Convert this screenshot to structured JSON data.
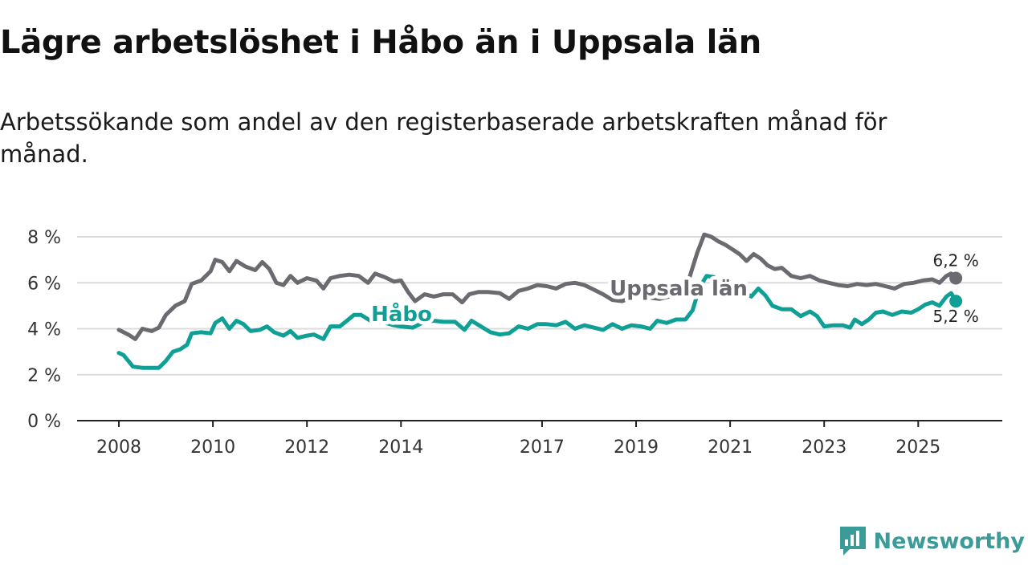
{
  "title": "Lägre arbetslöshet i Håbo än i Uppsala län",
  "subtitle": "Arbetssökande som andel av den registerbaserade arbetskraften månad för månad.",
  "brand": {
    "name": "Newsworthy"
  },
  "chart_data": {
    "type": "line",
    "title": "Lägre arbetslöshet i Håbo än i Uppsala län",
    "xlabel": "",
    "ylabel": "",
    "x_ticks": [
      2008,
      2010,
      2012,
      2014,
      2017,
      2019,
      2021,
      2023,
      2025
    ],
    "x_range": [
      2008,
      2025.9
    ],
    "ylim": [
      0,
      8
    ],
    "y_ticks": [
      0,
      2,
      4,
      6,
      8
    ],
    "y_tick_labels": [
      "0 %",
      "2 %",
      "4 %",
      "6 %",
      "8 %"
    ],
    "grid": true,
    "series": [
      {
        "name": "Uppsala län",
        "color": "#6b6a70",
        "end_label": "6,2 %",
        "points": [
          [
            2008.0,
            3.95
          ],
          [
            2008.2,
            3.75
          ],
          [
            2008.35,
            3.55
          ],
          [
            2008.5,
            4.0
          ],
          [
            2008.7,
            3.9
          ],
          [
            2008.85,
            4.05
          ],
          [
            2009.0,
            4.6
          ],
          [
            2009.2,
            5.0
          ],
          [
            2009.4,
            5.2
          ],
          [
            2009.55,
            5.95
          ],
          [
            2009.75,
            6.1
          ],
          [
            2009.95,
            6.5
          ],
          [
            2010.05,
            7.0
          ],
          [
            2010.2,
            6.9
          ],
          [
            2010.35,
            6.5
          ],
          [
            2010.5,
            6.95
          ],
          [
            2010.7,
            6.7
          ],
          [
            2010.9,
            6.55
          ],
          [
            2011.05,
            6.9
          ],
          [
            2011.2,
            6.6
          ],
          [
            2011.35,
            6.0
          ],
          [
            2011.5,
            5.9
          ],
          [
            2011.65,
            6.3
          ],
          [
            2011.8,
            6.0
          ],
          [
            2012.0,
            6.2
          ],
          [
            2012.2,
            6.1
          ],
          [
            2012.35,
            5.75
          ],
          [
            2012.5,
            6.2
          ],
          [
            2012.7,
            6.3
          ],
          [
            2012.9,
            6.35
          ],
          [
            2013.1,
            6.3
          ],
          [
            2013.3,
            6.0
          ],
          [
            2013.45,
            6.4
          ],
          [
            2013.65,
            6.25
          ],
          [
            2013.85,
            6.05
          ],
          [
            2014.0,
            6.1
          ],
          [
            2014.15,
            5.6
          ],
          [
            2014.3,
            5.2
          ],
          [
            2014.5,
            5.5
          ],
          [
            2014.7,
            5.4
          ],
          [
            2014.9,
            5.5
          ],
          [
            2015.1,
            5.5
          ],
          [
            2015.3,
            5.15
          ],
          [
            2015.45,
            5.5
          ],
          [
            2015.65,
            5.6
          ],
          [
            2015.85,
            5.6
          ],
          [
            2016.1,
            5.55
          ],
          [
            2016.3,
            5.3
          ],
          [
            2016.5,
            5.65
          ],
          [
            2016.7,
            5.75
          ],
          [
            2016.9,
            5.9
          ],
          [
            2017.1,
            5.85
          ],
          [
            2017.3,
            5.75
          ],
          [
            2017.5,
            5.95
          ],
          [
            2017.7,
            6.0
          ],
          [
            2017.9,
            5.9
          ],
          [
            2018.1,
            5.7
          ],
          [
            2018.3,
            5.5
          ],
          [
            2018.5,
            5.25
          ],
          [
            2018.7,
            5.2
          ],
          [
            2018.9,
            5.35
          ],
          [
            2019.1,
            5.5
          ],
          [
            2019.3,
            5.35
          ],
          [
            2019.5,
            5.3
          ],
          [
            2019.7,
            5.4
          ],
          [
            2019.9,
            5.5
          ],
          [
            2020.1,
            6.0
          ],
          [
            2020.3,
            7.3
          ],
          [
            2020.45,
            8.1
          ],
          [
            2020.6,
            8.0
          ],
          [
            2020.75,
            7.8
          ],
          [
            2020.9,
            7.65
          ],
          [
            2021.05,
            7.45
          ],
          [
            2021.2,
            7.25
          ],
          [
            2021.35,
            6.95
          ],
          [
            2021.5,
            7.25
          ],
          [
            2021.65,
            7.05
          ],
          [
            2021.8,
            6.75
          ],
          [
            2021.95,
            6.6
          ],
          [
            2022.1,
            6.65
          ],
          [
            2022.3,
            6.3
          ],
          [
            2022.5,
            6.2
          ],
          [
            2022.7,
            6.3
          ],
          [
            2022.9,
            6.1
          ],
          [
            2023.1,
            6.0
          ],
          [
            2023.3,
            5.9
          ],
          [
            2023.5,
            5.85
          ],
          [
            2023.7,
            5.95
          ],
          [
            2023.9,
            5.9
          ],
          [
            2024.1,
            5.95
          ],
          [
            2024.3,
            5.85
          ],
          [
            2024.5,
            5.75
          ],
          [
            2024.7,
            5.95
          ],
          [
            2024.9,
            6.0
          ],
          [
            2025.1,
            6.1
          ],
          [
            2025.3,
            6.15
          ],
          [
            2025.45,
            6.0
          ],
          [
            2025.6,
            6.3
          ],
          [
            2025.7,
            6.4
          ],
          [
            2025.8,
            6.2
          ]
        ]
      },
      {
        "name": "Håbo",
        "color": "#0f9f95",
        "end_label": "5,2 %",
        "points": [
          [
            2008.0,
            2.95
          ],
          [
            2008.1,
            2.85
          ],
          [
            2008.3,
            2.35
          ],
          [
            2008.5,
            2.3
          ],
          [
            2008.7,
            2.3
          ],
          [
            2008.85,
            2.3
          ],
          [
            2009.0,
            2.6
          ],
          [
            2009.15,
            3.0
          ],
          [
            2009.3,
            3.1
          ],
          [
            2009.45,
            3.3
          ],
          [
            2009.55,
            3.8
          ],
          [
            2009.75,
            3.85
          ],
          [
            2009.95,
            3.8
          ],
          [
            2010.05,
            4.25
          ],
          [
            2010.2,
            4.45
          ],
          [
            2010.35,
            4.0
          ],
          [
            2010.5,
            4.35
          ],
          [
            2010.65,
            4.2
          ],
          [
            2010.8,
            3.9
          ],
          [
            2011.0,
            3.95
          ],
          [
            2011.15,
            4.1
          ],
          [
            2011.3,
            3.85
          ],
          [
            2011.5,
            3.7
          ],
          [
            2011.65,
            3.9
          ],
          [
            2011.8,
            3.6
          ],
          [
            2012.0,
            3.7
          ],
          [
            2012.15,
            3.75
          ],
          [
            2012.35,
            3.55
          ],
          [
            2012.5,
            4.1
          ],
          [
            2012.7,
            4.1
          ],
          [
            2012.85,
            4.35
          ],
          [
            2013.0,
            4.6
          ],
          [
            2013.15,
            4.6
          ],
          [
            2013.35,
            4.35
          ],
          [
            2013.6,
            4.3
          ],
          [
            2013.85,
            4.15
          ],
          [
            2014.0,
            4.1
          ],
          [
            2014.25,
            4.05
          ],
          [
            2014.5,
            4.3
          ],
          [
            2014.7,
            4.35
          ],
          [
            2014.9,
            4.3
          ],
          [
            2015.15,
            4.3
          ],
          [
            2015.35,
            3.95
          ],
          [
            2015.5,
            4.35
          ],
          [
            2015.7,
            4.1
          ],
          [
            2015.9,
            3.85
          ],
          [
            2016.1,
            3.75
          ],
          [
            2016.3,
            3.8
          ],
          [
            2016.5,
            4.1
          ],
          [
            2016.7,
            4.0
          ],
          [
            2016.9,
            4.2
          ],
          [
            2017.1,
            4.2
          ],
          [
            2017.3,
            4.15
          ],
          [
            2017.5,
            4.3
          ],
          [
            2017.7,
            4.0
          ],
          [
            2017.9,
            4.15
          ],
          [
            2018.1,
            4.05
          ],
          [
            2018.3,
            3.95
          ],
          [
            2018.5,
            4.2
          ],
          [
            2018.7,
            4.0
          ],
          [
            2018.9,
            4.15
          ],
          [
            2019.1,
            4.1
          ],
          [
            2019.3,
            4.0
          ],
          [
            2019.45,
            4.35
          ],
          [
            2019.65,
            4.25
          ],
          [
            2019.85,
            4.4
          ],
          [
            2020.05,
            4.4
          ],
          [
            2020.2,
            4.8
          ],
          [
            2020.35,
            5.8
          ],
          [
            2020.5,
            6.3
          ],
          [
            2020.65,
            6.25
          ],
          [
            2020.85,
            5.95
          ],
          [
            2021.05,
            5.9
          ],
          [
            2021.25,
            5.65
          ],
          [
            2021.45,
            5.4
          ],
          [
            2021.6,
            5.75
          ],
          [
            2021.75,
            5.45
          ],
          [
            2021.9,
            5.0
          ],
          [
            2022.1,
            4.85
          ],
          [
            2022.3,
            4.85
          ],
          [
            2022.5,
            4.55
          ],
          [
            2022.7,
            4.75
          ],
          [
            2022.85,
            4.55
          ],
          [
            2023.0,
            4.1
          ],
          [
            2023.2,
            4.15
          ],
          [
            2023.4,
            4.15
          ],
          [
            2023.55,
            4.05
          ],
          [
            2023.65,
            4.4
          ],
          [
            2023.8,
            4.2
          ],
          [
            2023.95,
            4.4
          ],
          [
            2024.1,
            4.7
          ],
          [
            2024.25,
            4.75
          ],
          [
            2024.45,
            4.6
          ],
          [
            2024.65,
            4.75
          ],
          [
            2024.85,
            4.7
          ],
          [
            2025.0,
            4.85
          ],
          [
            2025.15,
            5.05
          ],
          [
            2025.3,
            5.15
          ],
          [
            2025.45,
            5.0
          ],
          [
            2025.6,
            5.4
          ],
          [
            2025.7,
            5.55
          ],
          [
            2025.8,
            5.2
          ]
        ]
      }
    ]
  }
}
